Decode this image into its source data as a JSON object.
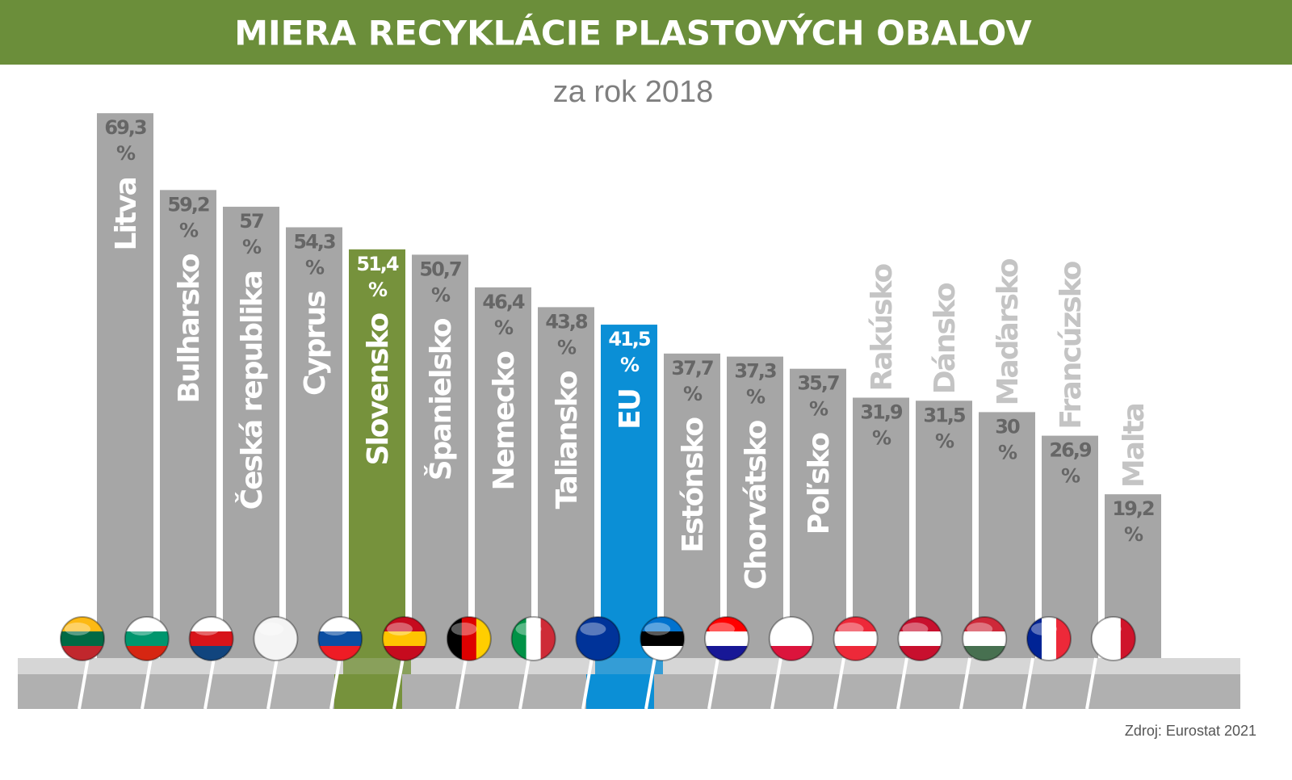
{
  "chart_data": {
    "type": "bar",
    "title": "MIERA RECYKLÁCIE PLASTOVÝCH OBALOV",
    "subtitle": "za rok 2018",
    "source": "Zdroj: Eurostat 2021",
    "categories": [
      "Litva",
      "Bulharsko",
      "Česká republika",
      "Cyprus",
      "Slovensko",
      "Španielsko",
      "Nemecko",
      "Taliansko",
      "EU",
      "Estónsko",
      "Chorvátsko",
      "Poľsko",
      "Rakúsko",
      "Dánsko",
      "Maďarsko",
      "Francúzsko",
      "Malta"
    ],
    "values": [
      69.3,
      59.2,
      57,
      54.3,
      51.4,
      50.7,
      46.4,
      43.8,
      41.5,
      37.7,
      37.3,
      35.7,
      31.9,
      31.5,
      30,
      26.9,
      19.2
    ],
    "value_labels": [
      "69,3 %",
      "59,2 %",
      "57 %",
      "54,3 %",
      "51,4 %",
      "50,7 %",
      "46,4 %",
      "43,8 %",
      "41,5 %",
      "37,7 %",
      "37,3 %",
      "35,7 %",
      "31,9 %",
      "31,5 %",
      "30 %",
      "26,9 %",
      "19,2 %"
    ],
    "colors": [
      "#a6a6a6",
      "#a6a6a6",
      "#a6a6a6",
      "#a6a6a6",
      "#76923c",
      "#a6a6a6",
      "#a6a6a6",
      "#a6a6a6",
      "#0b8fd6",
      "#a6a6a6",
      "#a6a6a6",
      "#a6a6a6",
      "#a6a6a6",
      "#a6a6a6",
      "#a6a6a6",
      "#a6a6a6",
      "#a6a6a6"
    ]
  }
}
